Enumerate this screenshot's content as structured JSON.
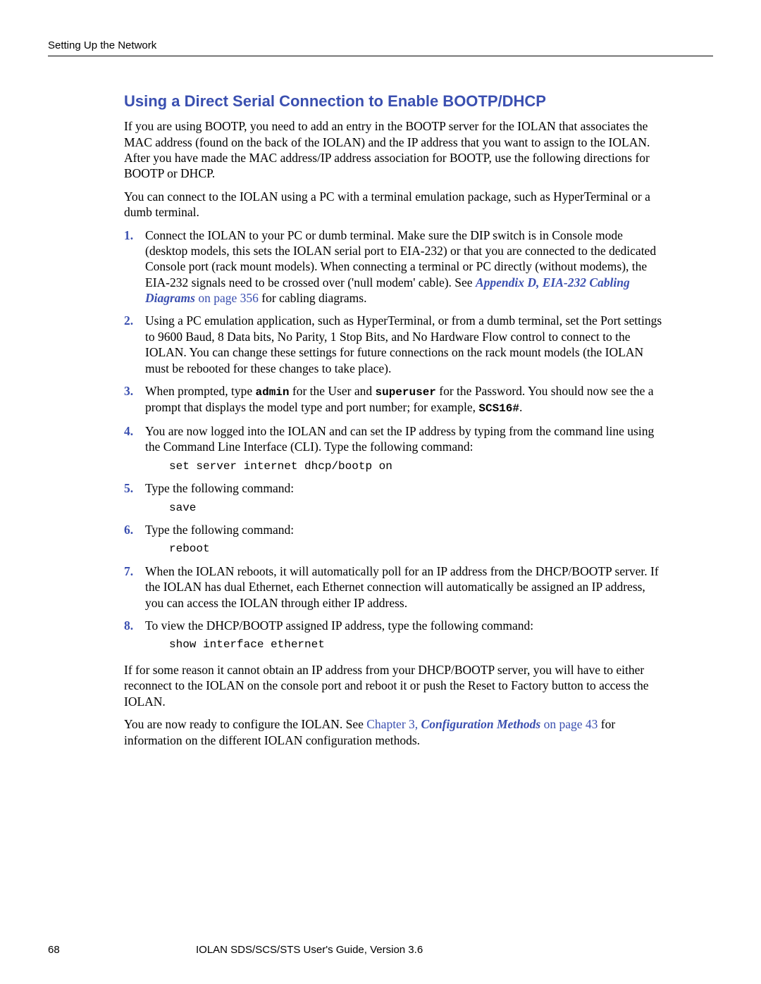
{
  "header": {
    "section_label": "Setting Up the Network"
  },
  "title": "Using a Direct Serial Connection to Enable BOOTP/DHCP",
  "intro_para1": "If you are using BOOTP, you need to add an entry in the BOOTP server for the IOLAN that associates the MAC address (found on the back of the IOLAN) and the IP address that you want to assign to the IOLAN. After you have made the MAC address/IP address association for BOOTP, use the following directions for BOOTP or DHCP.",
  "intro_para2": "You can connect to the IOLAN using a PC with a terminal emulation package, such as HyperTerminal or a dumb terminal.",
  "step1": {
    "text_before_link": "Connect the IOLAN to your PC or dumb terminal. Make sure the DIP switch is in Console mode (desktop models, this sets the IOLAN serial port to EIA-232) or that you are connected to the dedicated Console port (rack mount models). When connecting a terminal or PC directly (without modems), the EIA-232 signals need to be crossed over ('null modem' cable). See ",
    "link_text": "Appendix D, EIA-232 Cabling Diagrams",
    "link_suffix": " on page 356",
    "text_after_link": " for cabling diagrams."
  },
  "step2": "Using a PC emulation application, such as HyperTerminal, or from a dumb terminal, set the Port settings to 9600 Baud, 8 Data bits, No Parity, 1 Stop Bits, and No Hardware Flow control to connect to the IOLAN. You can change these settings for future connections on the rack mount models (the IOLAN must be rebooted for these changes to take place).",
  "step3": {
    "t1": "When prompted, type ",
    "admin": "admin",
    "t2": " for the User and ",
    "superuser": "superuser",
    "t3": " for the Password. You should now see the a prompt that displays the model type and port number; for example, ",
    "prompt": "SCS16#",
    "t4": "."
  },
  "step4": {
    "text": "You are now logged into the IOLAN and can set the IP address by typing from the command line using the Command Line Interface (CLI). Type the following command:",
    "code": "set server internet dhcp/bootp on"
  },
  "step5": {
    "text": "Type the following command:",
    "code": "save"
  },
  "step6": {
    "text": "Type the following command:",
    "code": "reboot"
  },
  "step7": "When the IOLAN reboots, it will automatically poll for an IP address from the DHCP/BOOTP server. If the IOLAN has dual Ethernet, each Ethernet connection will automatically be assigned an IP address, you can access the IOLAN through either IP address.",
  "step8": {
    "text": "To view the DHCP/BOOTP assigned IP address, type the following command:",
    "code": "show interface ethernet"
  },
  "closing1": "If for some reason it cannot obtain an IP address from your DHCP/BOOTP server, you will have to either reconnect to the IOLAN on the console port and reboot it or push the Reset to Factory button to access the IOLAN.",
  "closing2": {
    "t1": "You are now ready to configure the IOLAN. See ",
    "chapter": "Chapter 3",
    "sep": ", ",
    "methods": "Configuration Methods",
    "page_suffix": " on page 43",
    "t2": " for information on the different IOLAN configuration methods."
  },
  "footer": {
    "page_number": "68",
    "guide_title": "IOLAN SDS/SCS/STS User's Guide, Version 3.6"
  }
}
